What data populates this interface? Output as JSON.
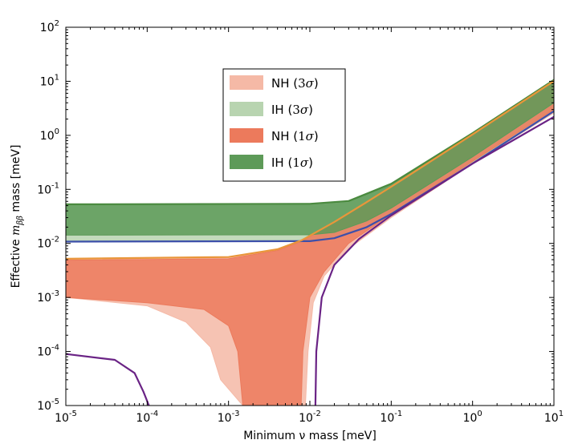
{
  "chart_data": {
    "type": "area",
    "xscale": "log",
    "yscale": "log",
    "xlim": [
      1e-05,
      10
    ],
    "ylim": [
      1e-05,
      100
    ],
    "xlabel": "Minimum ν mass [meV]",
    "ylabel_prefix": "Effective ",
    "ylabel_math": "m",
    "ylabel_sub": "ββ",
    "ylabel_suffix": " mass [meV]",
    "xticks": [
      {
        "base": "10",
        "exp": "-5",
        "value": 1e-05
      },
      {
        "base": "10",
        "exp": "-4",
        "value": 0.0001
      },
      {
        "base": "10",
        "exp": "-3",
        "value": 0.001
      },
      {
        "base": "10",
        "exp": "-2",
        "value": 0.01
      },
      {
        "base": "10",
        "exp": "-1",
        "value": 0.1
      },
      {
        "base": "10",
        "exp": "0",
        "value": 1
      },
      {
        "base": "10",
        "exp": "1",
        "value": 10
      }
    ],
    "yticks": [
      {
        "base": "10",
        "exp": "-5",
        "value": 1e-05
      },
      {
        "base": "10",
        "exp": "-4",
        "value": 0.0001
      },
      {
        "base": "10",
        "exp": "-3",
        "value": 0.001
      },
      {
        "base": "10",
        "exp": "-2",
        "value": 0.01
      },
      {
        "base": "10",
        "exp": "-1",
        "value": 0.1
      },
      {
        "base": "10",
        "exp": "0",
        "value": 1
      },
      {
        "base": "10",
        "exp": "1",
        "value": 10
      },
      {
        "base": "10",
        "exp": "2",
        "value": 100
      }
    ],
    "legend_position": "upper-center-left",
    "series": [
      {
        "name": "NH (3σ)",
        "label": "NH (",
        "sigma": "3",
        "color": "#f5b9a6",
        "upper": [
          [
            1e-05,
            0.0052
          ],
          [
            0.001,
            0.0056
          ],
          [
            0.004,
            0.0078
          ],
          [
            0.008,
            0.0115
          ],
          [
            0.02,
            0.025
          ],
          [
            0.05,
            0.058
          ],
          [
            0.1,
            0.112
          ],
          [
            1,
            1.04
          ],
          [
            10,
            10.1
          ]
        ],
        "lower": [
          [
            1e-05,
            0.001
          ],
          [
            0.0001,
            0.0007
          ],
          [
            0.0003,
            0.00035
          ],
          [
            0.0006,
            0.00012
          ],
          [
            0.0008,
            3e-05
          ],
          [
            0.0015,
            1e-05
          ],
          [
            0.0088,
            1e-05
          ],
          [
            0.0095,
            0.0001
          ],
          [
            0.011,
            0.0008
          ],
          [
            0.015,
            0.0025
          ],
          [
            0.03,
            0.008
          ],
          [
            0.1,
            0.03
          ],
          [
            1,
            0.3
          ],
          [
            10,
            2.6
          ]
        ]
      },
      {
        "name": "IH (3σ)",
        "label": "IH (",
        "sigma": "3",
        "color": "#b8d4b0",
        "upper": [
          [
            1e-05,
            0.05
          ],
          [
            0.01,
            0.0505
          ],
          [
            0.03,
            0.057
          ],
          [
            0.1,
            0.12
          ],
          [
            1,
            1.05
          ],
          [
            10,
            10.2
          ]
        ],
        "lower": [
          [
            1e-05,
            0.0112
          ],
          [
            0.01,
            0.0114
          ],
          [
            0.02,
            0.013
          ],
          [
            0.05,
            0.022
          ],
          [
            0.1,
            0.038
          ],
          [
            1,
            0.32
          ],
          [
            10,
            3.0
          ]
        ]
      },
      {
        "name": "NH (1σ)",
        "label": "NH (",
        "sigma": "1",
        "color": "#ec7a5c",
        "upper": [
          [
            1e-05,
            0.0049
          ],
          [
            0.001,
            0.0052
          ],
          [
            0.004,
            0.0074
          ],
          [
            0.008,
            0.011
          ],
          [
            0.02,
            0.024
          ],
          [
            0.05,
            0.056
          ],
          [
            0.1,
            0.108
          ],
          [
            1,
            1.02
          ],
          [
            10,
            10.0
          ]
        ],
        "lower": [
          [
            1e-05,
            0.001
          ],
          [
            0.0001,
            0.0008
          ],
          [
            0.0005,
            0.0006
          ],
          [
            0.001,
            0.0003
          ],
          [
            0.0013,
            0.0001
          ],
          [
            0.0015,
            1e-05
          ],
          [
            0.0078,
            1e-05
          ],
          [
            0.0082,
            0.0001
          ],
          [
            0.01,
            0.001
          ],
          [
            0.015,
            0.003
          ],
          [
            0.03,
            0.01
          ],
          [
            0.1,
            0.035
          ],
          [
            1,
            0.33
          ],
          [
            10,
            3.0
          ]
        ]
      },
      {
        "name": "IH (1σ)",
        "label": "IH (",
        "sigma": "1",
        "color": "#5d9a58",
        "upper": [
          [
            1e-05,
            0.052
          ],
          [
            0.01,
            0.053
          ],
          [
            0.03,
            0.06
          ],
          [
            0.1,
            0.125
          ],
          [
            1,
            1.08
          ],
          [
            10,
            10.5
          ]
        ],
        "lower": [
          [
            1e-05,
            0.0142
          ],
          [
            0.01,
            0.0144
          ],
          [
            0.02,
            0.016
          ],
          [
            0.05,
            0.026
          ],
          [
            0.1,
            0.045
          ],
          [
            1,
            0.4
          ],
          [
            10,
            4.0
          ]
        ]
      }
    ],
    "boundary_lines": [
      {
        "color": "#3c4faa",
        "points": [
          [
            1e-05,
            0.0108
          ],
          [
            0.01,
            0.011
          ],
          [
            0.02,
            0.0125
          ],
          [
            0.05,
            0.02
          ],
          [
            0.1,
            0.035
          ],
          [
            1,
            0.3
          ],
          [
            10,
            2.8
          ]
        ]
      },
      {
        "color": "#4a8a3f",
        "points": [
          [
            1e-05,
            0.053
          ],
          [
            0.01,
            0.054
          ],
          [
            0.03,
            0.061
          ],
          [
            0.1,
            0.127
          ],
          [
            1,
            1.1
          ],
          [
            10,
            10.6
          ]
        ]
      },
      {
        "color": "#e9963a",
        "points": [
          [
            1e-05,
            0.0052
          ],
          [
            0.001,
            0.0056
          ],
          [
            0.004,
            0.0078
          ],
          [
            0.008,
            0.0115
          ],
          [
            0.02,
            0.025
          ],
          [
            0.05,
            0.058
          ],
          [
            0.1,
            0.112
          ],
          [
            1,
            1.04
          ],
          [
            10,
            10.1
          ]
        ]
      },
      {
        "color": "#6a2385",
        "points": [
          [
            1e-05,
            9e-05
          ],
          [
            4e-05,
            7e-05
          ],
          [
            7e-05,
            4e-05
          ],
          [
            9e-05,
            1.8e-05
          ],
          [
            0.000105,
            1e-05
          ]
        ]
      },
      {
        "color": "#6a2385",
        "points": [
          [
            0.0117,
            1e-05
          ],
          [
            0.012,
            0.0001
          ],
          [
            0.014,
            0.001
          ],
          [
            0.02,
            0.004
          ],
          [
            0.04,
            0.012
          ],
          [
            0.1,
            0.033
          ],
          [
            1,
            0.3
          ],
          [
            10,
            2.2
          ]
        ]
      }
    ]
  }
}
